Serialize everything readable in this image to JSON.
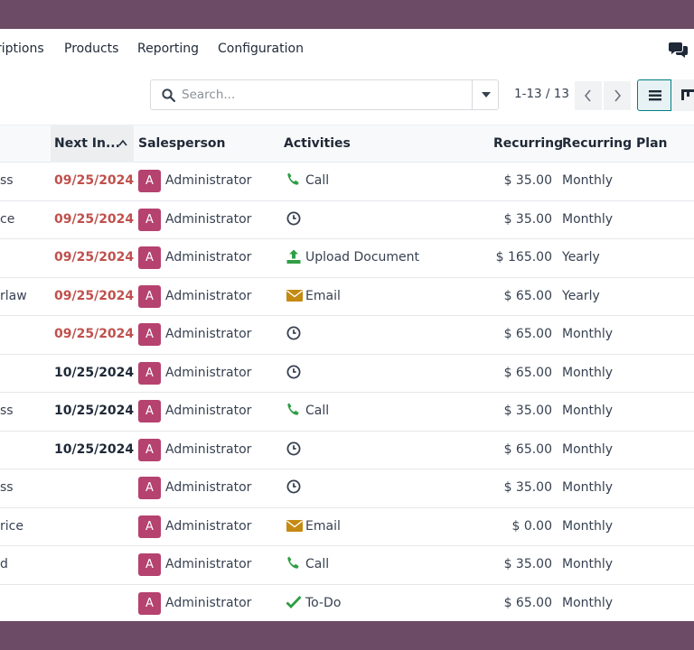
{
  "nav": {
    "items": [
      "riptions",
      "Products",
      "Reporting",
      "Configuration"
    ]
  },
  "search": {
    "placeholder": "Search..."
  },
  "pager": {
    "value": "1-13 / 13"
  },
  "colors": {
    "overdue": "#c0504d",
    "avatar": "#b5426f",
    "accent": "#017e84"
  },
  "table": {
    "headers": {
      "next_invoice": "Next In...",
      "salesperson": "Salesperson",
      "activities": "Activities",
      "recurring": "Recurring",
      "recurring_plan": "Recurring Plan"
    },
    "rows": [
      {
        "name": "ss",
        "date": "09/25/2024",
        "overdue": true,
        "avatar": "A",
        "salesperson": "Administrator",
        "activity_icon": "phone-icon",
        "activity": "Call",
        "amount": "$ 35.00",
        "plan": "Monthly"
      },
      {
        "name": "ce",
        "date": "09/25/2024",
        "overdue": true,
        "avatar": "A",
        "salesperson": "Administrator",
        "activity_icon": "clock-icon",
        "activity": "",
        "amount": "$ 35.00",
        "plan": "Monthly"
      },
      {
        "name": "",
        "date": "09/25/2024",
        "overdue": true,
        "avatar": "A",
        "salesperson": "Administrator",
        "activity_icon": "upload-icon",
        "activity": "Upload Document",
        "amount": "$ 165.00",
        "plan": "Yearly"
      },
      {
        "name": "rlaw",
        "date": "09/25/2024",
        "overdue": true,
        "avatar": "A",
        "salesperson": "Administrator",
        "activity_icon": "email-icon",
        "activity": "Email",
        "amount": "$ 65.00",
        "plan": "Yearly"
      },
      {
        "name": "",
        "date": "09/25/2024",
        "overdue": true,
        "avatar": "A",
        "salesperson": "Administrator",
        "activity_icon": "clock-icon",
        "activity": "",
        "amount": "$ 65.00",
        "plan": "Monthly"
      },
      {
        "name": "",
        "date": "10/25/2024",
        "overdue": false,
        "avatar": "A",
        "salesperson": "Administrator",
        "activity_icon": "clock-icon",
        "activity": "",
        "amount": "$ 65.00",
        "plan": "Monthly"
      },
      {
        "name": "ss",
        "date": "10/25/2024",
        "overdue": false,
        "avatar": "A",
        "salesperson": "Administrator",
        "activity_icon": "phone-icon",
        "activity": "Call",
        "amount": "$ 35.00",
        "plan": "Monthly"
      },
      {
        "name": "",
        "date": "10/25/2024",
        "overdue": false,
        "avatar": "A",
        "salesperson": "Administrator",
        "activity_icon": "clock-icon",
        "activity": "",
        "amount": "$ 65.00",
        "plan": "Monthly"
      },
      {
        "name": "ss",
        "date": "",
        "overdue": false,
        "avatar": "A",
        "salesperson": "Administrator",
        "activity_icon": "clock-icon",
        "activity": "",
        "amount": "$ 35.00",
        "plan": "Monthly"
      },
      {
        "name": "rice",
        "date": "",
        "overdue": false,
        "avatar": "A",
        "salesperson": "Administrator",
        "activity_icon": "email-icon",
        "activity": "Email",
        "amount": "$ 0.00",
        "plan": "Monthly"
      },
      {
        "name": "d",
        "date": "",
        "overdue": false,
        "avatar": "A",
        "salesperson": "Administrator",
        "activity_icon": "phone-icon",
        "activity": "Call",
        "amount": "$ 35.00",
        "plan": "Monthly"
      },
      {
        "name": "",
        "date": "",
        "overdue": false,
        "avatar": "A",
        "salesperson": "Administrator",
        "activity_icon": "check-icon",
        "activity": "To-Do",
        "amount": "$ 65.00",
        "plan": "Monthly"
      }
    ]
  }
}
